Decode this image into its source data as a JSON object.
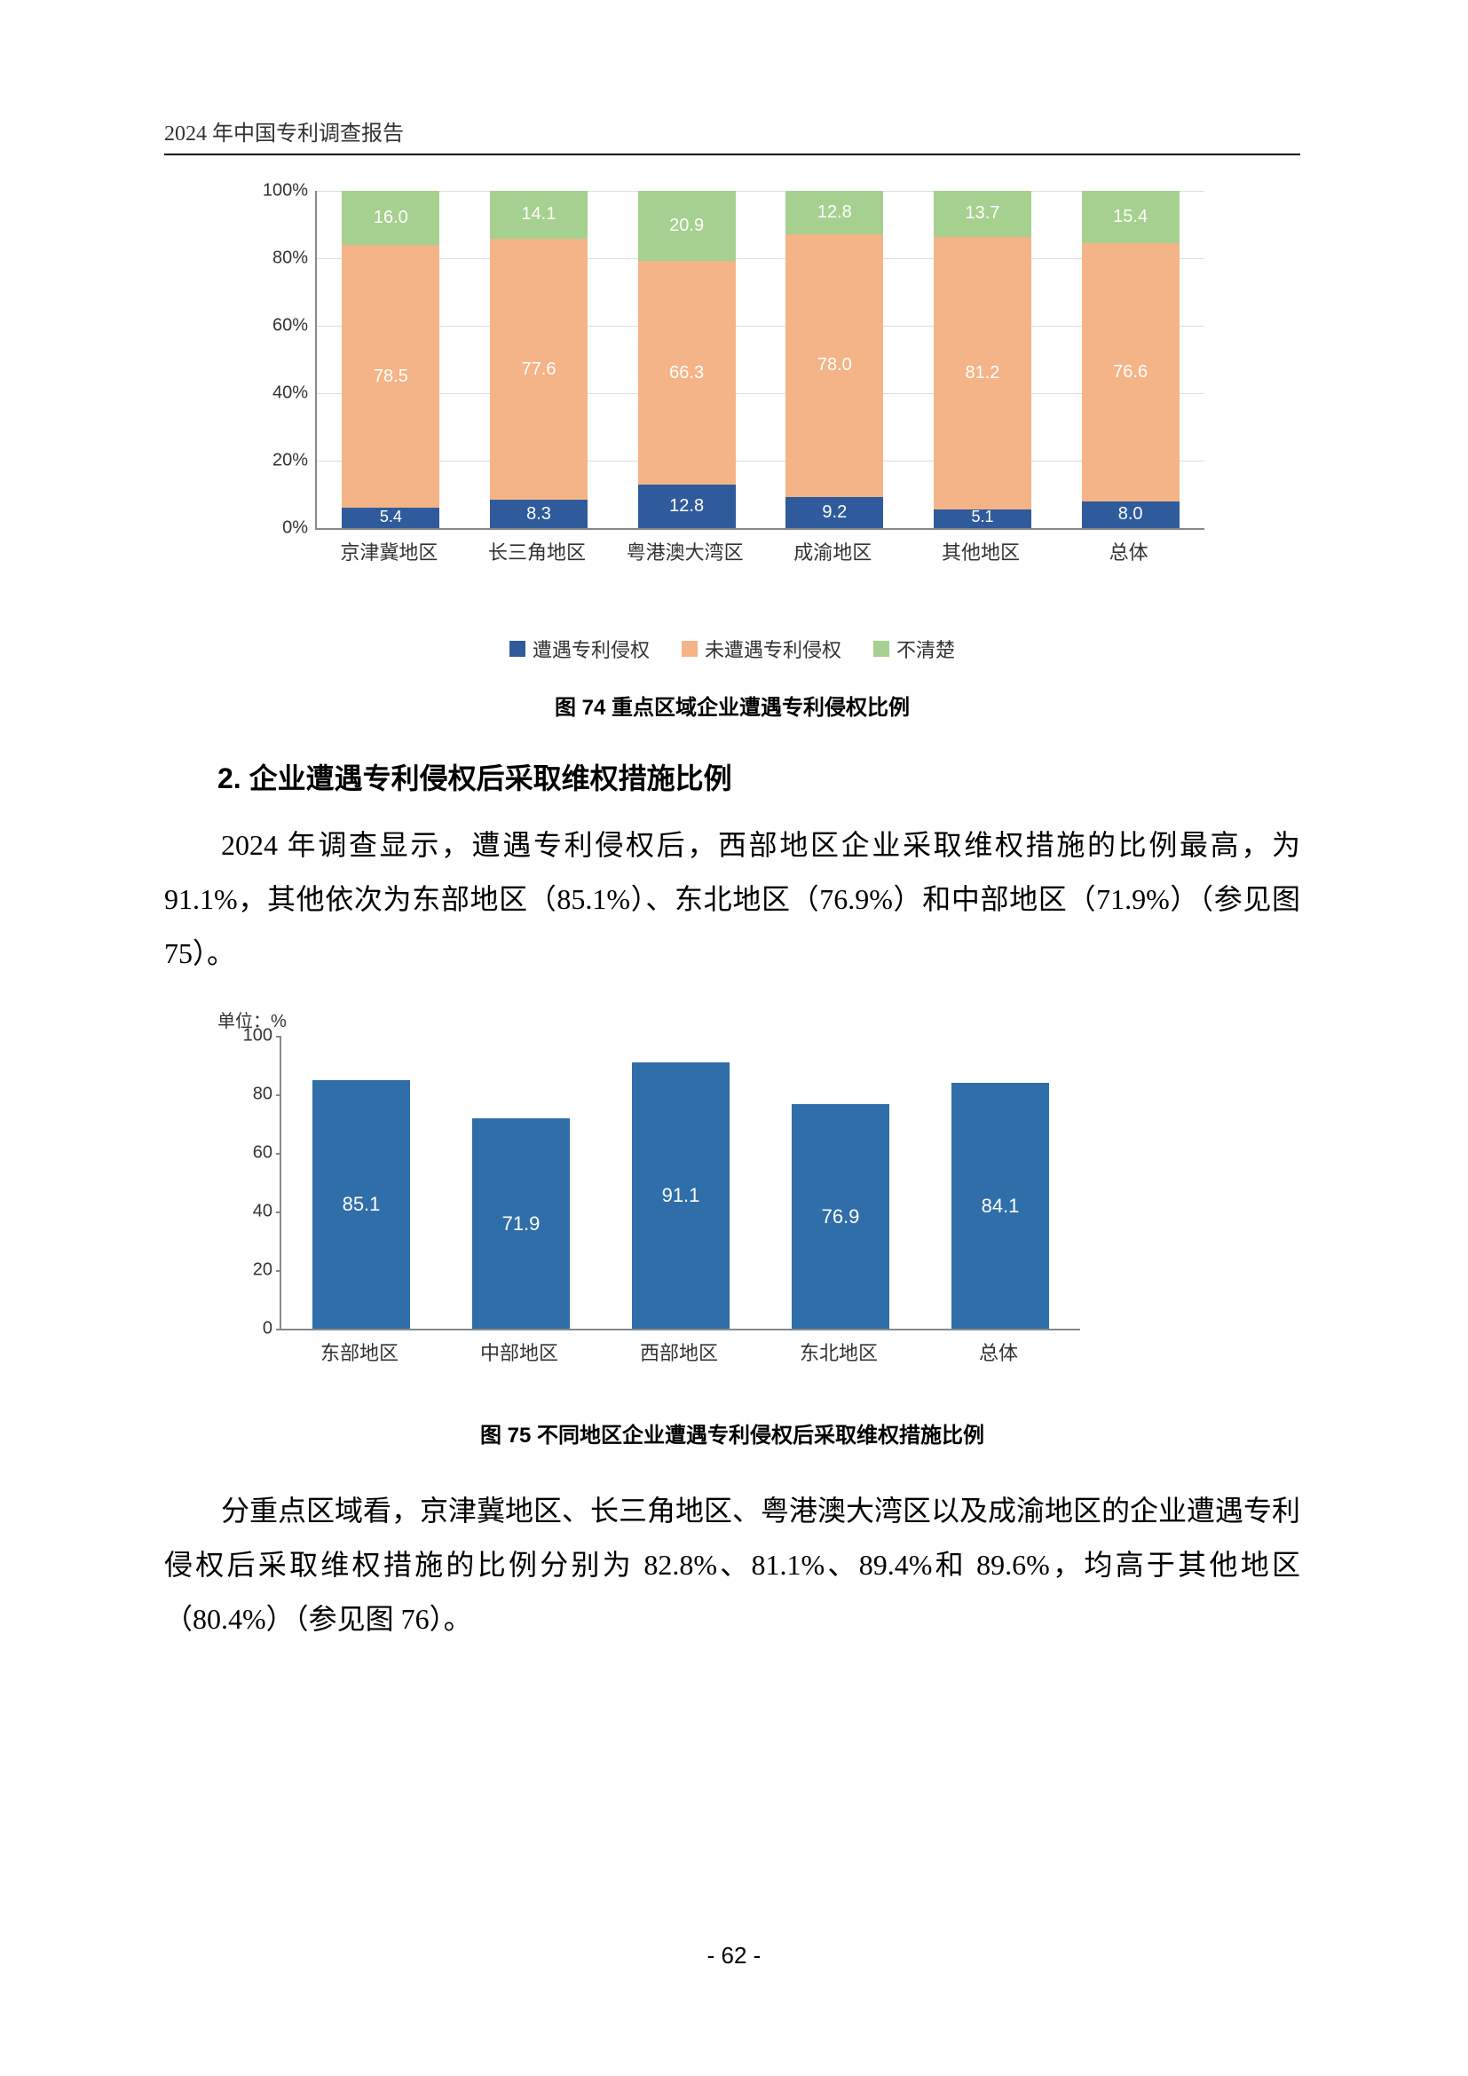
{
  "header": {
    "running_title": "2024 年中国专利调查报告"
  },
  "chart74": {
    "type": "stacked-bar",
    "ylim": [
      0,
      100
    ],
    "ytick_step": 20,
    "yticks": [
      "0%",
      "20%",
      "40%",
      "60%",
      "80%",
      "100%"
    ],
    "categories": [
      "京津冀地区",
      "长三角地区",
      "粤港澳大湾区",
      "成渝地区",
      "其他地区",
      "总体"
    ],
    "series": [
      {
        "name": "遭遇专利侵权",
        "color": "#2f5b9c",
        "values": [
          5.4,
          8.3,
          12.8,
          9.2,
          5.1,
          8.0
        ]
      },
      {
        "name": "未遭遇专利侵权",
        "color": "#f4b487",
        "values": [
          78.5,
          77.6,
          66.3,
          78.0,
          81.2,
          76.6
        ]
      },
      {
        "name": "不清楚",
        "color": "#a6d08f",
        "values": [
          16.0,
          14.1,
          20.9,
          12.8,
          13.7,
          15.4
        ]
      }
    ],
    "caption": "图 74  重点区域企业遭遇专利侵权比例",
    "background_color": "#ffffff",
    "grid_color": "#dddddd",
    "label_fontsize": 20,
    "bar_width": 0.55
  },
  "section2": {
    "heading": "2. 企业遭遇专利侵权后采取维权措施比例",
    "para1": "2024 年调查显示，遭遇专利侵权后，西部地区企业采取维权措施的比例最高，为 91.1%，其他依次为东部地区（85.1%）、东北地区（76.9%）和中部地区（71.9%）（参见图 75）。"
  },
  "chart75": {
    "type": "bar",
    "unit_label": "单位：%",
    "ylim": [
      0,
      100
    ],
    "ytick_step": 20,
    "yticks": [
      "0",
      "20",
      "40",
      "60",
      "80",
      "100"
    ],
    "categories": [
      "东部地区",
      "中部地区",
      "西部地区",
      "东北地区",
      "总体"
    ],
    "values": [
      85.1,
      71.9,
      91.1,
      76.9,
      84.1
    ],
    "bar_color": "#2f6ea8",
    "caption": "图 75  不同地区企业遭遇专利侵权后采取维权措施比例",
    "background_color": "#ffffff",
    "label_fontsize": 20,
    "bar_width": 0.6
  },
  "section2b": {
    "para2": "分重点区域看，京津冀地区、长三角地区、粤港澳大湾区以及成渝地区的企业遭遇专利侵权后采取维权措施的比例分别为 82.8%、81.1%、89.4%和 89.6%，均高于其他地区（80.4%）（参见图 76）。"
  },
  "footer": {
    "page_number": "- 62 -"
  }
}
